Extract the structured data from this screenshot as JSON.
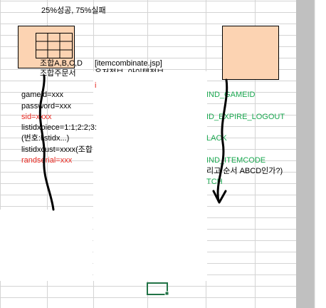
{
  "caption": "25%성공, 75%실패",
  "left_box": {
    "line1": "조합A,B,C,D",
    "line2": "조합주문서"
  },
  "params": [
    {
      "text": "gameid=xxx",
      "color": "black"
    },
    {
      "text": "password=xxx",
      "color": "black"
    },
    {
      "text": "sid=xxxx",
      "color": "red"
    },
    {
      "text": "listidxpiece=1:1;2:2;3:",
      "color": "black"
    },
    {
      "text": "(번호:listidx...)",
      "color": "black"
    },
    {
      "text": "listidxcust=xxxx(조합",
      "color": "black"
    },
    {
      "text": "randserial=xxx",
      "color": "red"
    }
  ],
  "jsp": {
    "title": "[itemcombinate.jsp]",
    "subtitle": "유저정보, 아이템정보"
  },
  "codes": [
    "IND_GAMEID",
    "ID_EXPIRE_LOGOUT",
    "LACK",
    "IND_ITEMCODE",
    "리고 순서 ABCD인가?)",
    "TCH"
  ],
  "colors": {
    "box_fill": "#fcd3b2",
    "grid_line": "#d4d4d4",
    "scrollbar": "#c0c0c0",
    "red_text": "#e8261e",
    "green_text": "#1aa850",
    "selection": "#217346"
  }
}
